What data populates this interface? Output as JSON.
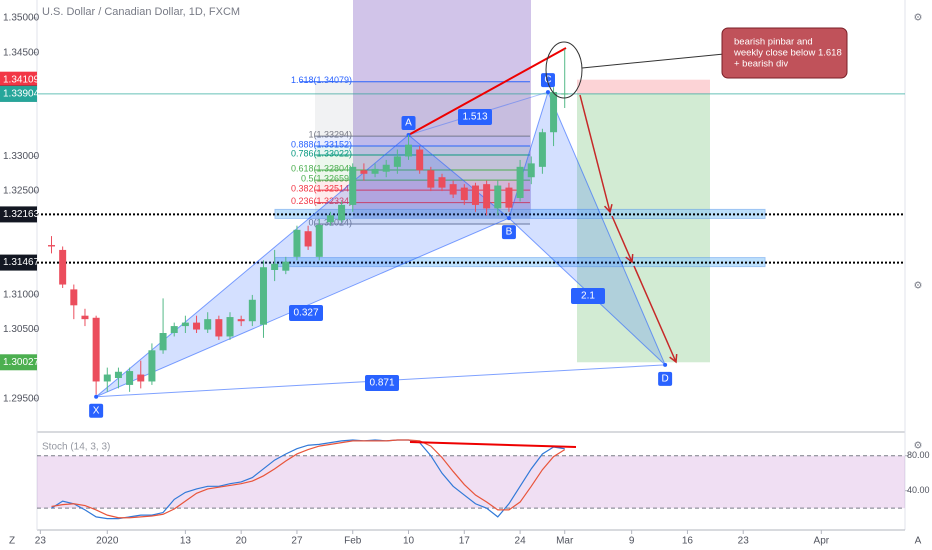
{
  "chart_data": {
    "type": "candlestick",
    "title": "U.S. Dollar / Canadian Dollar, 1D, FXCM",
    "up_color": "#53b987",
    "down_color": "#eb4d5c",
    "x": [
      1,
      2,
      3,
      4,
      5,
      6,
      7,
      8,
      9,
      10,
      11,
      12,
      13,
      14,
      15,
      16,
      17,
      18,
      19,
      20,
      21,
      22,
      23,
      24,
      25,
      26,
      27,
      28,
      29,
      30,
      31,
      32,
      33,
      34,
      35,
      36,
      37,
      38,
      39,
      40,
      41,
      42,
      43,
      44,
      45,
      46,
      47
    ],
    "open": [
      1.3172,
      1.3165,
      1.3108,
      1.307,
      1.3067,
      1.2975,
      1.298,
      1.297,
      1.2985,
      1.2975,
      1.302,
      1.3045,
      1.3055,
      1.306,
      1.305,
      1.3065,
      1.304,
      1.3065,
      1.3062,
      1.3057,
      1.3136,
      1.3135,
      1.3155,
      1.3192,
      1.3155,
      1.3205,
      1.3208,
      1.323,
      1.328,
      1.3275,
      1.3278,
      1.3285,
      1.33,
      1.331,
      1.328,
      1.327,
      1.326,
      1.3255,
      1.3258,
      1.326,
      1.3225,
      1.3255,
      1.324,
      1.327,
      1.3285,
      1.3335,
      1.339
    ],
    "high": [
      1.3185,
      1.317,
      1.3115,
      1.308,
      1.307,
      1.2995,
      1.2995,
      1.2995,
      1.3005,
      1.303,
      1.3095,
      1.306,
      1.307,
      1.307,
      1.3075,
      1.307,
      1.3075,
      1.307,
      1.31,
      1.315,
      1.3165,
      1.3155,
      1.32,
      1.32,
      1.321,
      1.322,
      1.3235,
      1.329,
      1.329,
      1.329,
      1.3295,
      1.331,
      1.3331,
      1.3315,
      1.3285,
      1.3275,
      1.3265,
      1.326,
      1.3262,
      1.3265,
      1.3265,
      1.3262,
      1.3295,
      1.33,
      1.334,
      1.34,
      1.3455
    ],
    "low": [
      1.316,
      1.311,
      1.3065,
      1.3055,
      1.2956,
      1.296,
      1.2965,
      1.296,
      1.2965,
      1.297,
      1.3015,
      1.304,
      1.3045,
      1.3045,
      1.3045,
      1.3035,
      1.3035,
      1.3055,
      1.3055,
      1.3038,
      1.312,
      1.313,
      1.315,
      1.3165,
      1.315,
      1.32,
      1.3205,
      1.322,
      1.3265,
      1.327,
      1.327,
      1.3275,
      1.3295,
      1.3275,
      1.325,
      1.325,
      1.324,
      1.323,
      1.322,
      1.3215,
      1.3215,
      1.322,
      1.3235,
      1.326,
      1.3275,
      1.3315,
      1.337
    ],
    "close": [
      1.317,
      1.3115,
      1.3085,
      1.3065,
      1.2975,
      1.2985,
      1.2989,
      1.299,
      1.2975,
      1.302,
      1.3045,
      1.3055,
      1.306,
      1.305,
      1.3065,
      1.304,
      1.3068,
      1.3062,
      1.3093,
      1.314,
      1.3145,
      1.3148,
      1.3194,
      1.317,
      1.3201,
      1.3215,
      1.323,
      1.3285,
      1.3275,
      1.3282,
      1.3288,
      1.33,
      1.3317,
      1.328,
      1.3255,
      1.3255,
      1.3245,
      1.3237,
      1.323,
      1.3225,
      1.3258,
      1.3226,
      1.3285,
      1.329,
      1.3335,
      1.3393,
      1.3391
    ],
    "xlim": [
      -0.3,
      77.5
    ],
    "xticks": [
      {
        "value": 0,
        "label": "23"
      },
      {
        "value": 6,
        "label": "2020"
      },
      {
        "value": 13,
        "label": "13"
      },
      {
        "value": 18,
        "label": "20"
      },
      {
        "value": 23,
        "label": "27"
      },
      {
        "value": 28,
        "label": "Feb"
      },
      {
        "value": 33,
        "label": "10"
      },
      {
        "value": 38,
        "label": "17"
      },
      {
        "value": 43,
        "label": "24"
      },
      {
        "value": 47,
        "label": "Mar"
      },
      {
        "value": 53,
        "label": "9"
      },
      {
        "value": 58,
        "label": "16"
      },
      {
        "value": 63,
        "label": "23"
      },
      {
        "value": 70,
        "label": "Apr"
      }
    ],
    "ylim": [
      1.2902,
      1.3526
    ],
    "yticks": [
      {
        "value": 1.35,
        "label": "1.35000"
      },
      {
        "value": 1.345,
        "label": "1.34500"
      },
      {
        "value": 1.33,
        "label": "1.33000"
      },
      {
        "value": 1.325,
        "label": "1.32500"
      },
      {
        "value": 1.31,
        "label": "1.31000"
      },
      {
        "value": 1.305,
        "label": "1.30500"
      },
      {
        "value": 1.295,
        "label": "1.29500"
      }
    ],
    "price_tags": [
      {
        "value": 1.34109,
        "color": "#f23645",
        "role": "stop"
      },
      {
        "value": 1.33907,
        "color": "#131722",
        "role": "last"
      },
      {
        "value": 1.33904,
        "color": "#26a69a",
        "role": "entry"
      },
      {
        "value": 1.32163,
        "color": "#131722",
        "role": "level"
      },
      {
        "value": 1.31467,
        "color": "#131722",
        "role": "level"
      },
      {
        "value": 1.30027,
        "color": "#4caf50",
        "role": "target"
      }
    ],
    "fib_levels": [
      {
        "value": 1.34079,
        "label": "1.618(1.34079)",
        "color": "#2962ff"
      },
      {
        "value": 1.33294,
        "label": "1(1.33294)",
        "color": "#787b86"
      },
      {
        "value": 1.33152,
        "label": "0.888(1.33152)",
        "color": "#2962ff"
      },
      {
        "value": 1.33022,
        "label": "0.786(1.33022)",
        "color": "#089981"
      },
      {
        "value": 1.32804,
        "label": "0.618(1.32804)",
        "color": "#4caf50"
      },
      {
        "value": 1.32659,
        "label": "0.5(1.32659)",
        "color": "#4caf50"
      },
      {
        "value": 1.32514,
        "label": "0.382(1.32514)",
        "color": "#f23645"
      },
      {
        "value": 1.32334,
        "label": "0.236(1.32334)",
        "color": "#f23645"
      },
      {
        "value": 1.32024,
        "label": "0(1.32024)",
        "color": "#787b86"
      }
    ],
    "pattern_points": [
      {
        "label": "X",
        "x": 5,
        "y": 1.2953
      },
      {
        "label": "A",
        "x": 33,
        "y": 1.3331
      },
      {
        "label": "B",
        "x": 42,
        "y": 1.3211
      },
      {
        "label": "C",
        "x": 45.5,
        "y": 1.3393
      },
      {
        "label": "D",
        "x": 56,
        "y": 1.2999
      }
    ],
    "ratios": [
      "0.327",
      "1.513",
      "2.1",
      "0.871"
    ],
    "annotation": [
      "bearish pinbar and",
      "weekly close below 1.618",
      "+ bearish div"
    ],
    "stoch": {
      "title": "Stoch (14, 3, 3)",
      "ylim": [
        -5,
        106
      ],
      "band": [
        20,
        80
      ],
      "yticks": [
        {
          "value": 80,
          "label": "80.00"
        },
        {
          "value": 40,
          "label": "40.00"
        }
      ],
      "series": [
        {
          "name": "%K",
          "color": "#3179d8",
          "values": [
            20,
            28,
            25,
            18,
            10,
            8,
            8,
            10,
            12,
            12,
            15,
            30,
            38,
            42,
            45,
            45,
            48,
            50,
            55,
            65,
            75,
            82,
            88,
            92,
            93,
            95,
            97,
            98,
            97,
            98,
            97,
            98,
            98,
            95,
            80,
            60,
            45,
            35,
            25,
            20,
            10,
            25,
            45,
            65,
            82,
            90,
            88
          ]
        },
        {
          "name": "%D",
          "color": "#e8553b",
          "values": [
            22,
            24,
            25,
            23,
            18,
            12,
            9,
            9,
            10,
            11,
            13,
            19,
            28,
            37,
            42,
            44,
            46,
            48,
            51,
            57,
            65,
            74,
            82,
            87,
            91,
            93,
            95,
            97,
            97,
            97,
            97,
            98,
            98,
            97,
            91,
            78,
            62,
            47,
            35,
            27,
            18,
            18,
            27,
            45,
            64,
            79,
            87
          ]
        }
      ]
    }
  }
}
